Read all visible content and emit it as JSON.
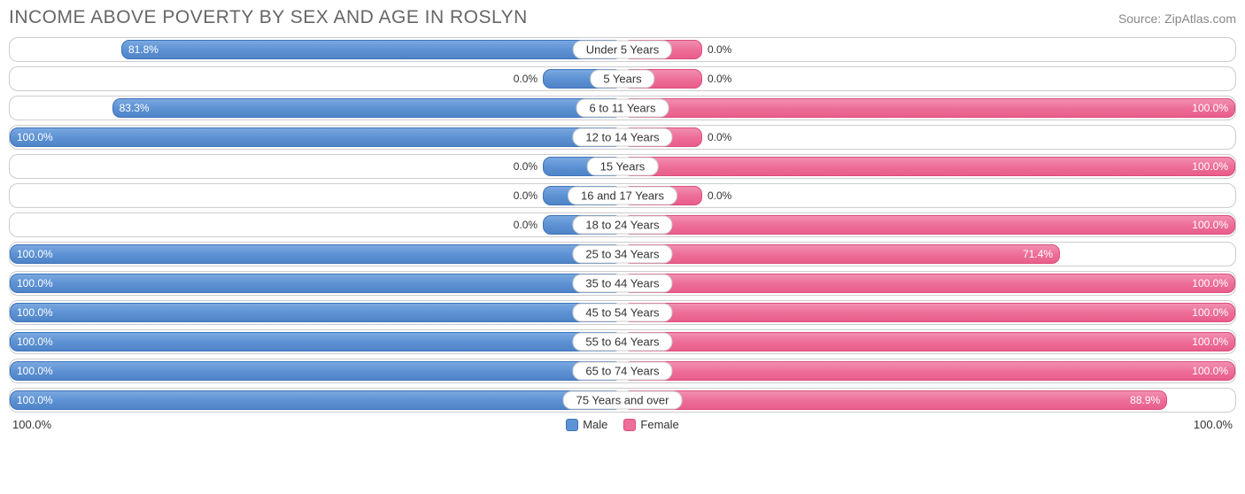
{
  "header": {
    "title": "INCOME ABOVE POVERTY BY SEX AND AGE IN ROSLYN",
    "source": "Source: ZipAtlas.com"
  },
  "chart": {
    "type": "diverging-bar",
    "male_color": "#5d92d4",
    "male_border": "#3d73b9",
    "female_color": "#ed6f99",
    "female_border": "#dc4c7d",
    "row_border": "#cccccc",
    "background": "#ffffff",
    "bar_min_pct": 13,
    "rows": [
      {
        "label": "Under 5 Years",
        "male": 81.8,
        "male_text": "81.8%",
        "female": 0.0,
        "female_text": "0.0%",
        "female_shows_bar": true
      },
      {
        "label": "5 Years",
        "male": 0.0,
        "male_text": "0.0%",
        "female": 0.0,
        "female_text": "0.0%",
        "female_shows_bar": true,
        "male_shows_bar": true
      },
      {
        "label": "6 to 11 Years",
        "male": 83.3,
        "male_text": "83.3%",
        "female": 100.0,
        "female_text": "100.0%"
      },
      {
        "label": "12 to 14 Years",
        "male": 100.0,
        "male_text": "100.0%",
        "female": 0.0,
        "female_text": "0.0%",
        "female_shows_bar": true
      },
      {
        "label": "15 Years",
        "male": 0.0,
        "male_text": "0.0%",
        "female": 100.0,
        "female_text": "100.0%",
        "male_shows_bar": true
      },
      {
        "label": "16 and 17 Years",
        "male": 0.0,
        "male_text": "0.0%",
        "female": 0.0,
        "female_text": "0.0%",
        "female_shows_bar": true,
        "male_shows_bar": true
      },
      {
        "label": "18 to 24 Years",
        "male": 0.0,
        "male_text": "0.0%",
        "female": 100.0,
        "female_text": "100.0%",
        "male_shows_bar": true
      },
      {
        "label": "25 to 34 Years",
        "male": 100.0,
        "male_text": "100.0%",
        "female": 71.4,
        "female_text": "71.4%"
      },
      {
        "label": "35 to 44 Years",
        "male": 100.0,
        "male_text": "100.0%",
        "female": 100.0,
        "female_text": "100.0%"
      },
      {
        "label": "45 to 54 Years",
        "male": 100.0,
        "male_text": "100.0%",
        "female": 100.0,
        "female_text": "100.0%"
      },
      {
        "label": "55 to 64 Years",
        "male": 100.0,
        "male_text": "100.0%",
        "female": 100.0,
        "female_text": "100.0%"
      },
      {
        "label": "65 to 74 Years",
        "male": 100.0,
        "male_text": "100.0%",
        "female": 100.0,
        "female_text": "100.0%"
      },
      {
        "label": "75 Years and over",
        "male": 100.0,
        "male_text": "100.0%",
        "female": 88.9,
        "female_text": "88.9%"
      }
    ],
    "axis": {
      "left": "100.0%",
      "right": "100.0%"
    },
    "legend": {
      "male": "Male",
      "female": "Female"
    }
  }
}
